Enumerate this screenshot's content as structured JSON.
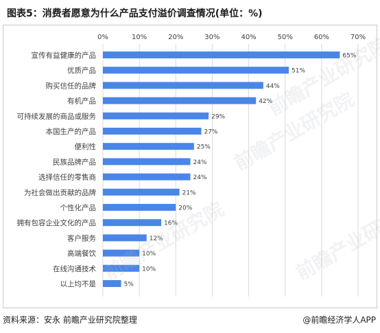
{
  "title": "图表5：消费者愿意为什么产品支付溢价调查情况(单位：%)",
  "footer": {
    "source": "资料来源：安永 前瞻产业研究院整理",
    "brand": "@前瞻经济学人APP"
  },
  "watermark": "前瞻产业研究院",
  "colors": {
    "bar": "#4a86e8",
    "grid": "#d9d9d9",
    "text": "#404040"
  },
  "chart_data": {
    "type": "bar",
    "orientation": "horizontal",
    "categories": [
      "宣传有益健康的产品",
      "优质产品",
      "购买信任的品牌",
      "有机产品",
      "可持续发展的商品或服务",
      "本国生产的产品",
      "便利性",
      "民族品牌产品",
      "选择信任的零售商",
      "为社会做出贡献的品牌",
      "个性化产品",
      "拥有包容企业文化的产品",
      "客户服务",
      "高端餐饮",
      "在线沟通技术",
      "以上均不是"
    ],
    "values": [
      65,
      51,
      44,
      42,
      29,
      27,
      25,
      24,
      24,
      21,
      20,
      16,
      12,
      10,
      10,
      5
    ],
    "value_labels": [
      "65%",
      "51%",
      "44%",
      "42%",
      "29%",
      "27%",
      "25%",
      "24%",
      "24%",
      "21%",
      "20%",
      "16%",
      "12%",
      "10%",
      "10%",
      "5%"
    ],
    "xlim": [
      0,
      70
    ],
    "xticks": [
      "0%",
      "10%",
      "20%",
      "30%",
      "40%",
      "50%",
      "60%",
      "70%"
    ],
    "xtick_values": [
      0,
      10,
      20,
      30,
      40,
      50,
      60,
      70
    ],
    "grid": true,
    "axis_position": "top"
  }
}
